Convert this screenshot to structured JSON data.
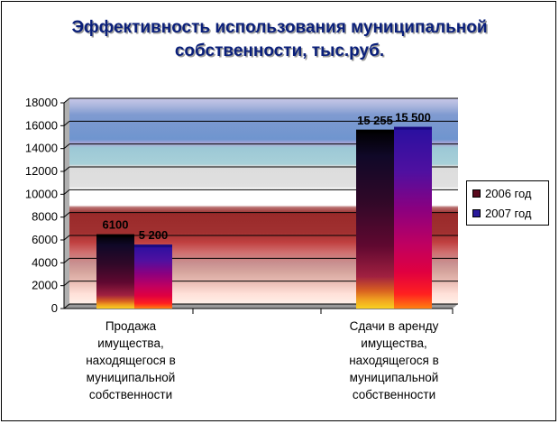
{
  "chart_data": {
    "type": "bar",
    "title_lines": [
      "Эффективность использования муниципальной",
      "собственности, тыс.руб."
    ],
    "categories": [
      [
        "Продажа",
        "имущества,",
        "находящегося в",
        "муниципальной",
        "собственности"
      ],
      [
        "Сдачи в аренду",
        "имущества,",
        "находящегося в",
        "муниципальной",
        "собственности"
      ]
    ],
    "series": [
      {
        "name": "2006 год",
        "values": [
          6100,
          15255
        ],
        "labels": [
          "6100",
          "15 255"
        ]
      },
      {
        "name": "2007 год",
        "values": [
          5200,
          15500
        ],
        "labels": [
          "5 200",
          "15 500"
        ]
      }
    ],
    "yticks": [
      "0",
      "2000",
      "4000",
      "6000",
      "8000",
      "10000",
      "12000",
      "14000",
      "16000",
      "18000"
    ],
    "ylim": [
      0,
      18000
    ],
    "grid": true,
    "legend": "right"
  },
  "colors": {
    "legend_2006": "#5a0a1e",
    "legend_2007": "#2a1a9a"
  }
}
